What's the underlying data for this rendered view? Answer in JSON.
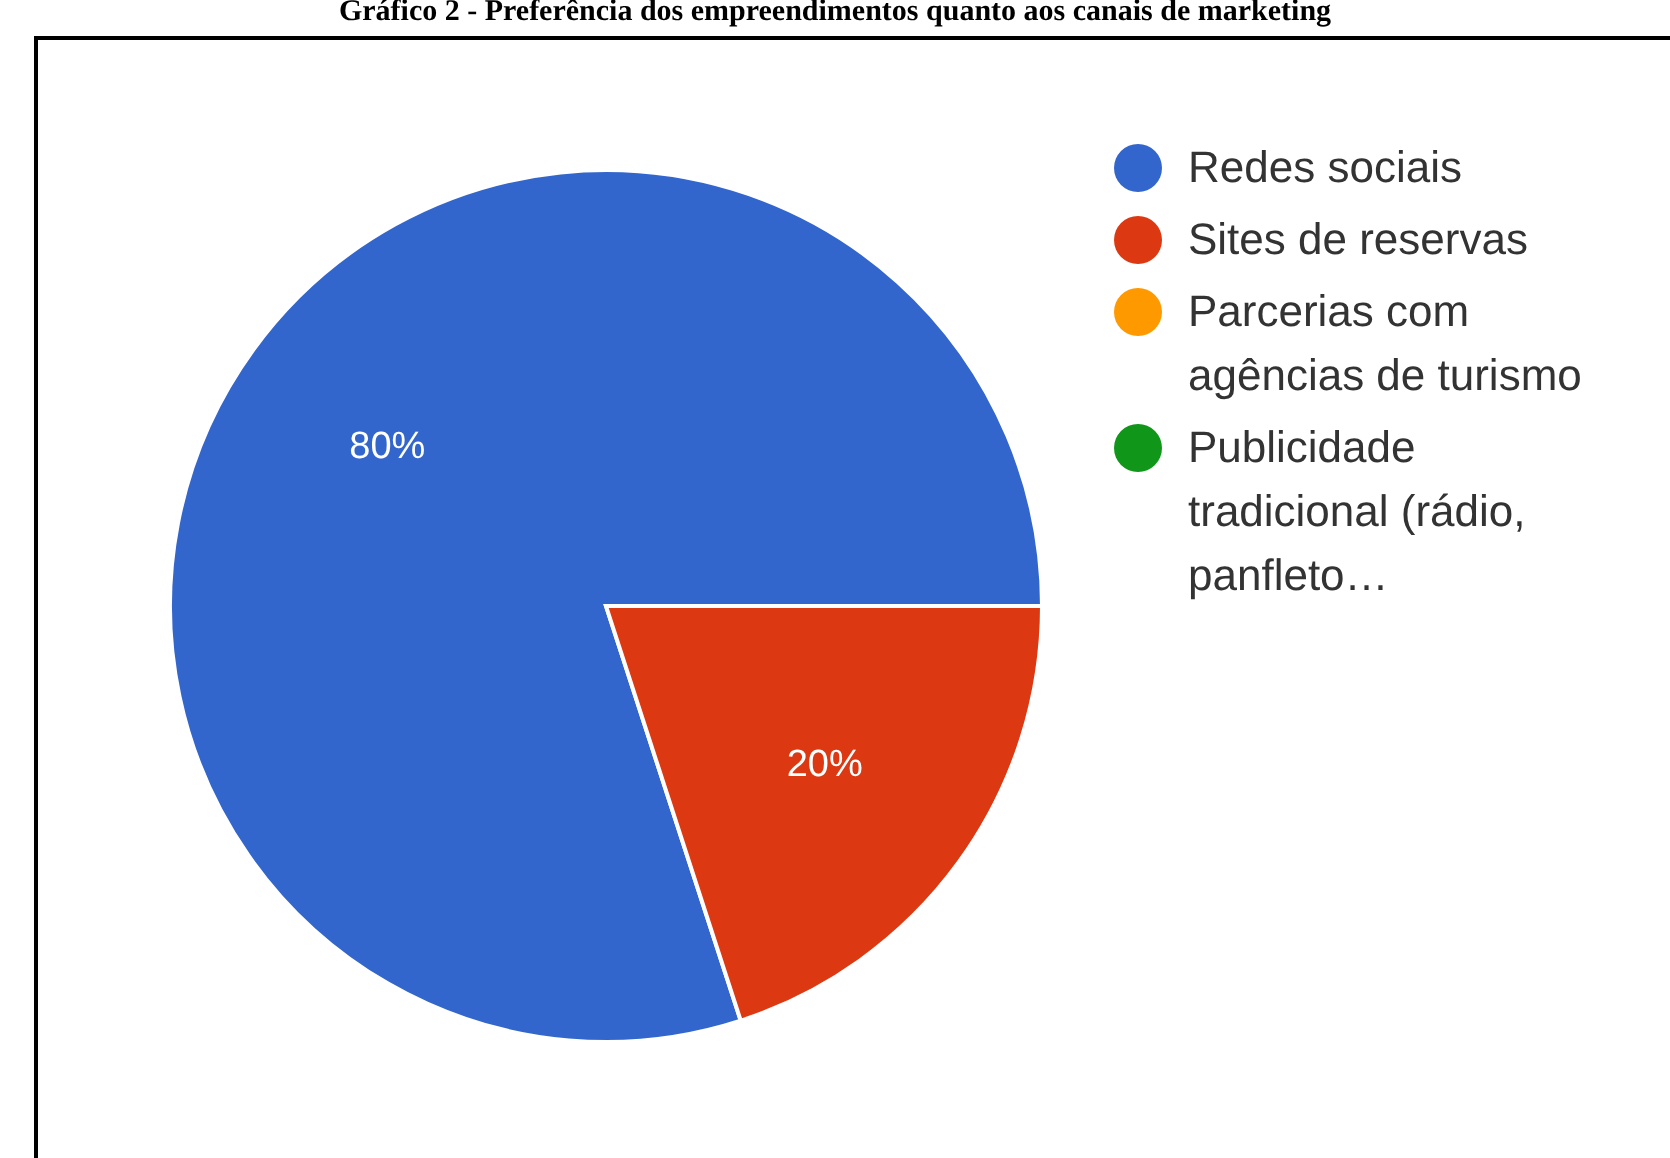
{
  "chart_data": {
    "type": "pie",
    "title": "Gráfico 2 - Preferência dos empreendimentos quanto aos canais de marketing",
    "categories": [
      "Redes sociais",
      "Sites de reservas",
      "Parcerias com agências de turismo",
      "Publicidade tradicional (rádio, panfleto…"
    ],
    "values": [
      80,
      20,
      0,
      0
    ],
    "colors": [
      "#3366cc",
      "#dc3912",
      "#ff9900",
      "#109618"
    ],
    "value_labels": [
      "80%",
      "20%",
      null,
      null
    ],
    "legend": "right"
  }
}
